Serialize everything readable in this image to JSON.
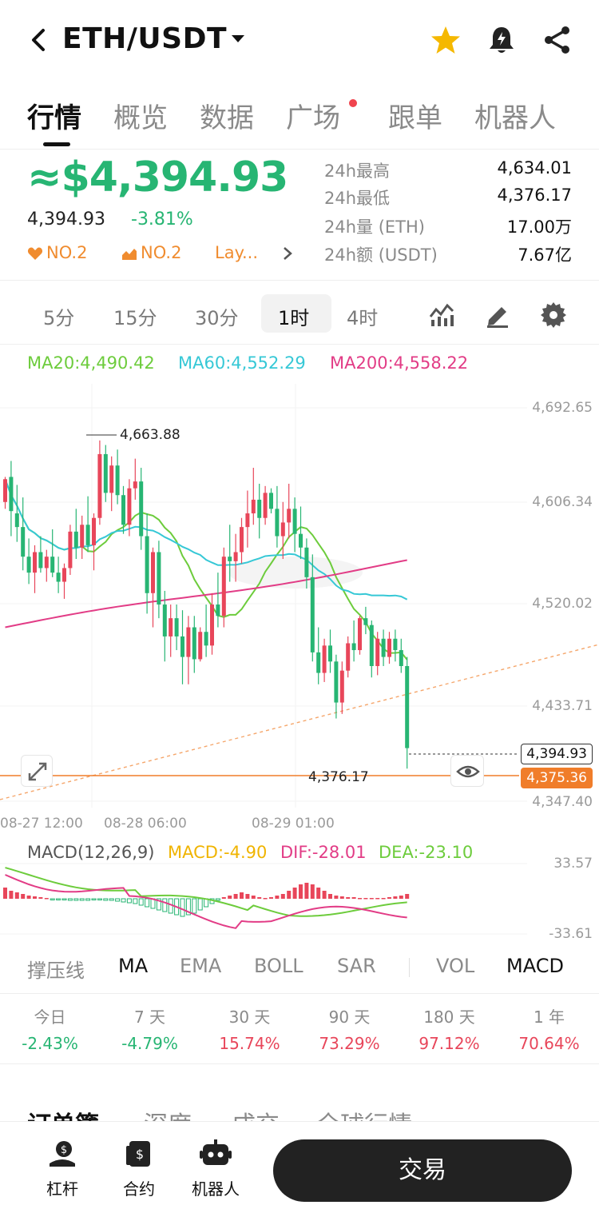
{
  "header": {
    "pair": "ETH/USDT",
    "icons": [
      "back-arrow-icon",
      "chevron-down-icon",
      "star-icon",
      "bell-icon",
      "share-icon"
    ],
    "star_color": "#f5b800"
  },
  "tabs": [
    "行情",
    "概览",
    "数据",
    "广场",
    "跟单",
    "机器人"
  ],
  "active_tab": "行情",
  "price": {
    "main": "≈$4,394.93",
    "last": "4,394.93",
    "change": "-3.81%",
    "ranks": [
      "NO.2",
      "NO.2",
      "Lay..."
    ]
  },
  "stats": [
    {
      "label": "24h最高",
      "value": "4,634.01"
    },
    {
      "label": "24h最低",
      "value": "4,376.17"
    },
    {
      "label": "24h量 (ETH)",
      "value": "17.00万"
    },
    {
      "label": "24h额 (USDT)",
      "value": "7.67亿"
    }
  ],
  "periods": [
    "5分",
    "15分",
    "30分",
    "1时",
    "4时"
  ],
  "active_period": "1时",
  "toolbar_icons": [
    "indicator-icon",
    "draw-icon",
    "settings-icon"
  ],
  "ma": {
    "ma20": "MA20:4,490.42",
    "ma60": "MA60:4,552.29",
    "ma200": "MA200:4,558.22"
  },
  "colors": {
    "up": "#e8465a",
    "down": "#27b573",
    "ma20": "#6dcc3c",
    "ma60": "#36c8d6",
    "ma200": "#e23c86",
    "macd": "#f0b400",
    "accent": "#f07d2a"
  },
  "chart_data": {
    "type": "candlestick",
    "y_ticks": [
      "4,692.65",
      "4,606.34",
      "4,520.02",
      "4,433.71",
      "4,347.40"
    ],
    "x_ticks": [
      "08-27 12:00",
      "08-28 06:00",
      "08-29 01:00"
    ],
    "high_marker": "4,663.88",
    "low_marker": "4,376.17",
    "last_price": "4,394.93",
    "mark_price": "4,375.36",
    "ylim": [
      4347.4,
      4692.65
    ],
    "candles": [
      [
        4610,
        4632,
        4604,
        4630
      ],
      [
        4632,
        4646,
        4580,
        4602
      ],
      [
        4600,
        4625,
        4575,
        4588
      ],
      [
        4588,
        4614,
        4550,
        4562
      ],
      [
        4562,
        4578,
        4538,
        4548
      ],
      [
        4548,
        4572,
        4530,
        4566
      ],
      [
        4566,
        4580,
        4548,
        4552
      ],
      [
        4552,
        4568,
        4540,
        4562
      ],
      [
        4562,
        4586,
        4544,
        4548
      ],
      [
        4548,
        4562,
        4530,
        4540
      ],
      [
        4540,
        4556,
        4525,
        4552
      ],
      [
        4552,
        4590,
        4546,
        4584
      ],
      [
        4584,
        4604,
        4560,
        4570
      ],
      [
        4570,
        4598,
        4560,
        4590
      ],
      [
        4590,
        4615,
        4566,
        4572
      ],
      [
        4572,
        4600,
        4550,
        4596
      ],
      [
        4596,
        4664,
        4590,
        4652
      ],
      [
        4652,
        4660,
        4610,
        4618
      ],
      [
        4618,
        4650,
        4602,
        4642
      ],
      [
        4642,
        4656,
        4608,
        4616
      ],
      [
        4616,
        4624,
        4582,
        4590
      ],
      [
        4590,
        4630,
        4580,
        4622
      ],
      [
        4622,
        4648,
        4612,
        4628
      ],
      [
        4628,
        4640,
        4568,
        4580
      ],
      [
        4580,
        4600,
        4512,
        4530
      ],
      [
        4530,
        4570,
        4500,
        4566
      ],
      [
        4566,
        4576,
        4508,
        4520
      ],
      [
        4520,
        4532,
        4470,
        4492
      ],
      [
        4492,
        4520,
        4474,
        4508
      ],
      [
        4508,
        4520,
        4480,
        4492
      ],
      [
        4492,
        4515,
        4450,
        4474
      ],
      [
        4474,
        4510,
        4450,
        4500
      ],
      [
        4500,
        4510,
        4460,
        4472
      ],
      [
        4472,
        4500,
        4470,
        4496
      ],
      [
        4496,
        4520,
        4474,
        4484
      ],
      [
        4484,
        4530,
        4476,
        4520
      ],
      [
        4520,
        4548,
        4500,
        4510
      ],
      [
        4510,
        4570,
        4500,
        4562
      ],
      [
        4562,
        4590,
        4540,
        4558
      ],
      [
        4558,
        4582,
        4540,
        4566
      ],
      [
        4566,
        4596,
        4556,
        4588
      ],
      [
        4588,
        4620,
        4570,
        4600
      ],
      [
        4600,
        4640,
        4590,
        4612
      ],
      [
        4612,
        4626,
        4578,
        4596
      ],
      [
        4596,
        4624,
        4590,
        4618
      ],
      [
        4618,
        4622,
        4600,
        4604
      ],
      [
        4604,
        4624,
        4570,
        4580
      ],
      [
        4580,
        4610,
        4560,
        4592
      ],
      [
        4592,
        4626,
        4578,
        4604
      ],
      [
        4604,
        4614,
        4566,
        4582
      ],
      [
        4582,
        4606,
        4560,
        4570
      ],
      [
        4570,
        4578,
        4534,
        4544
      ],
      [
        4544,
        4564,
        4470,
        4478
      ],
      [
        4478,
        4500,
        4450,
        4460
      ],
      [
        4460,
        4490,
        4452,
        4484
      ],
      [
        4484,
        4498,
        4460,
        4470
      ],
      [
        4470,
        4476,
        4420,
        4434
      ],
      [
        4434,
        4470,
        4424,
        4462
      ],
      [
        4462,
        4492,
        4456,
        4486
      ],
      [
        4486,
        4506,
        4470,
        4480
      ],
      [
        4480,
        4510,
        4476,
        4508
      ],
      [
        4508,
        4518,
        4494,
        4502
      ],
      [
        4502,
        4506,
        4456,
        4466
      ],
      [
        4466,
        4496,
        4458,
        4490
      ],
      [
        4490,
        4498,
        4466,
        4474
      ],
      [
        4474,
        4496,
        4468,
        4490
      ],
      [
        4490,
        4498,
        4470,
        4480
      ],
      [
        4480,
        4490,
        4460,
        4466
      ],
      [
        4466,
        4474,
        4376,
        4394
      ]
    ]
  },
  "macd": {
    "title": "MACD(12,26,9)",
    "macd": "MACD:-4.90",
    "dif": "DIF:-28.01",
    "dea": "DEA:-23.10",
    "y_top": "33.57",
    "y_bottom": "-33.61"
  },
  "indicators": [
    "撑压线",
    "MA",
    "EMA",
    "BOLL",
    "SAR",
    "VOL",
    "MACD"
  ],
  "indicators_on": [
    "MA",
    "MACD"
  ],
  "performance": [
    {
      "label": "今日",
      "value": "-2.43%",
      "dir": "neg"
    },
    {
      "label": "7 天",
      "value": "-4.79%",
      "dir": "neg"
    },
    {
      "label": "30 天",
      "value": "15.74%",
      "dir": "pos"
    },
    {
      "label": "90 天",
      "value": "73.29%",
      "dir": "pos"
    },
    {
      "label": "180 天",
      "value": "97.12%",
      "dir": "pos"
    },
    {
      "label": "1 年",
      "value": "70.64%",
      "dir": "pos"
    }
  ],
  "section_tabs": [
    "订单簿",
    "深度",
    "成交",
    "全球行情"
  ],
  "bottom_nav": {
    "items": [
      "杠杆",
      "合约",
      "机器人"
    ],
    "trade": "交易"
  }
}
